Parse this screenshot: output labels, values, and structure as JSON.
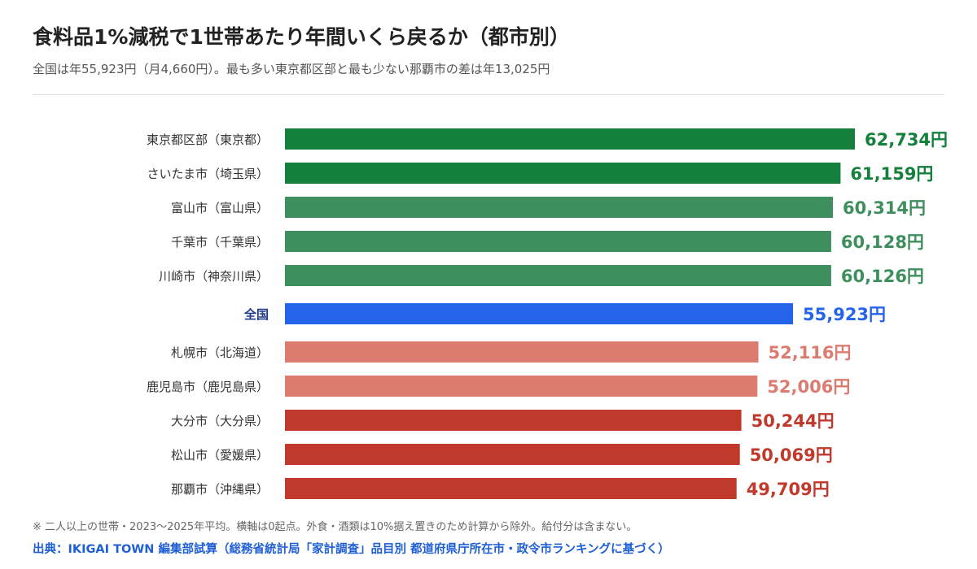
{
  "header": {
    "title": "食料品1%減税で1世帯あたり年間いくら戻るか（都市別）",
    "subtitle": "全国は年55,923円（月4,660円）。最も多い東京都区部と最も少ない那覇市の差は年13,025円"
  },
  "footer": {
    "note": "※ 二人以上の世帯・2023〜2025年平均。横軸は0起点。外食・酒類は10%据え置きのため計算から除外。給付分は含まない。",
    "source": "出典：IKIGAI TOWN 編集部試算（総務省統計局「家計調査」品目別 都道府県庁所在市・政令市ランキングに基づく）"
  },
  "colors": {
    "top_dark": "#14803c",
    "top_light": "#3e8f5e",
    "national": "#2563eb",
    "low_light": "#dc7b6f",
    "low_dark": "#c0392b",
    "national_label": "#1e3a8a",
    "label_text": "#333333"
  },
  "chart_data": {
    "type": "bar",
    "orientation": "horizontal",
    "unit": "円",
    "xlim": [
      0,
      null
    ],
    "categories": [
      "東京都区部（東京都）",
      "さいたま市（埼玉県）",
      "富山市（富山県）",
      "千葉市（千葉県）",
      "川崎市（神奈川県）",
      "全国",
      "札幌市（北海道）",
      "鹿児島市（鹿児島県）",
      "大分市（大分県）",
      "松山市（愛媛県）",
      "那覇市（沖縄県）"
    ],
    "values": [
      62734,
      61159,
      60314,
      60128,
      60126,
      55923,
      52116,
      52006,
      50244,
      50069,
      49709
    ],
    "value_labels": [
      "62,734円",
      "61,159円",
      "60,314円",
      "60,128円",
      "60,126円",
      "55,923円",
      "52,116円",
      "52,006円",
      "50,244円",
      "50,069円",
      "49,709円"
    ],
    "color_keys": [
      "top_dark",
      "top_dark",
      "top_light",
      "top_light",
      "top_light",
      "national",
      "low_light",
      "low_light",
      "low_dark",
      "low_dark",
      "low_dark"
    ]
  }
}
